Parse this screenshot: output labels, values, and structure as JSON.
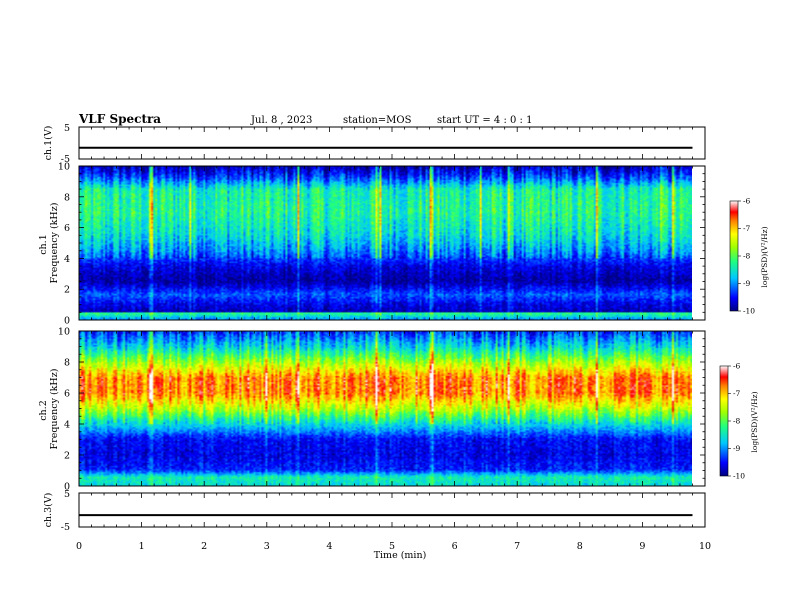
{
  "header": {
    "title": "VLF Spectra",
    "date": "Jul. 8 , 2023",
    "station": "station=MOS",
    "start": "start UT =  4 : 0  : 1"
  },
  "chart_data": [
    {
      "type": "line",
      "panel": "ch1-voltage",
      "ylabel": "ch.1(V)",
      "ylim": [
        -5,
        5
      ],
      "y_ticks": [
        "5",
        "-5"
      ],
      "xlim": [
        0,
        10
      ],
      "series": [
        {
          "x": [
            0,
            9.8
          ],
          "values": [
            -1.5,
            -1.5
          ]
        }
      ]
    },
    {
      "type": "heatmap",
      "panel": "ch1-spectrogram",
      "ylabel": "ch.1\nFrequency (kHz)",
      "ylim": [
        0,
        10
      ],
      "y_ticks": [
        "0",
        "2",
        "4",
        "6",
        "8",
        "10"
      ],
      "xlim": [
        0,
        10
      ],
      "data_xlim": [
        0,
        9.8
      ],
      "colorbar": {
        "label": "log(PSD)(V²/Hz)",
        "range": [
          -10,
          -6
        ],
        "ticks": [
          "-6",
          "-7",
          "-8",
          "-9",
          "-10"
        ]
      },
      "band_profile_kHz": [
        [
          0,
          -9.0
        ],
        [
          0.4,
          -8.2
        ],
        [
          0.5,
          -9.8
        ],
        [
          1.0,
          -9.6
        ],
        [
          1.6,
          -9.2
        ],
        [
          2.5,
          -9.9
        ],
        [
          3.5,
          -9.6
        ],
        [
          4.5,
          -9.0
        ],
        [
          5.5,
          -8.6
        ],
        [
          7.0,
          -8.3
        ],
        [
          8.5,
          -8.4
        ],
        [
          9.3,
          -9.3
        ],
        [
          10,
          -9.8
        ]
      ]
    },
    {
      "type": "heatmap",
      "panel": "ch2-spectrogram",
      "ylabel": "ch.2\nFrequency (kHz)",
      "ylim": [
        0,
        10
      ],
      "y_ticks": [
        "0",
        "2",
        "4",
        "6",
        "8",
        "10"
      ],
      "xlim": [
        0,
        10
      ],
      "data_xlim": [
        0,
        9.8
      ],
      "colorbar": {
        "label": "log(PSD)(V²/Hz)",
        "range": [
          -10,
          -6
        ],
        "ticks": [
          "-6",
          "-7",
          "-8",
          "-9",
          "-10"
        ]
      },
      "band_profile_kHz": [
        [
          0,
          -8.6
        ],
        [
          0.5,
          -8.4
        ],
        [
          1.0,
          -9.4
        ],
        [
          2.0,
          -9.6
        ],
        [
          3.0,
          -9.5
        ],
        [
          4.0,
          -8.6
        ],
        [
          5.0,
          -7.5
        ],
        [
          6.0,
          -6.7
        ],
        [
          7.0,
          -6.7
        ],
        [
          8.0,
          -7.6
        ],
        [
          9.0,
          -8.6
        ],
        [
          10,
          -9.3
        ]
      ]
    },
    {
      "type": "line",
      "panel": "ch3-voltage",
      "ylabel": "ch.3(V)",
      "ylim": [
        -5,
        5
      ],
      "y_ticks": [
        "5",
        "-5"
      ],
      "xlim": [
        0,
        10
      ],
      "xlabel": "Time (min)",
      "x_ticks": [
        "0",
        "1",
        "2",
        "3",
        "4",
        "5",
        "6",
        "7",
        "8",
        "9",
        "10"
      ],
      "series": [
        {
          "x": [
            0,
            9.8
          ],
          "values": [
            -1.5,
            -1.5
          ]
        }
      ]
    }
  ]
}
